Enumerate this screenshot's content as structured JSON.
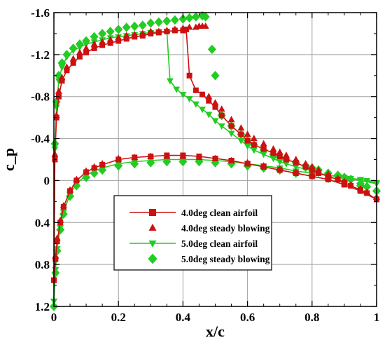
{
  "chart_data": {
    "type": "scatter",
    "xlabel": "x/c",
    "ylabel": "c_p",
    "xlim": [
      0,
      1
    ],
    "ylim": [
      -1.6,
      1.2
    ],
    "y_inverted": true,
    "grid": true,
    "legend_position": "lower-center",
    "x_ticks": [
      {
        "value": 0,
        "label": "0"
      },
      {
        "value": 0.2,
        "label": "0.2"
      },
      {
        "value": 0.4,
        "label": "0.4"
      },
      {
        "value": 0.6,
        "label": "0.6"
      },
      {
        "value": 0.8,
        "label": "0.8"
      },
      {
        "value": 1,
        "label": "1"
      }
    ],
    "y_ticks": [
      {
        "value": -1.6,
        "label": "-1.6"
      },
      {
        "value": -1.2,
        "label": "-1.2"
      },
      {
        "value": -0.8,
        "label": "-0.8"
      },
      {
        "value": -0.4,
        "label": "-0.4"
      },
      {
        "value": 0,
        "label": "0"
      },
      {
        "value": 0.4,
        "label": "0.4"
      },
      {
        "value": 0.8,
        "label": "0.8"
      },
      {
        "value": 1.2,
        "label": "1.2"
      }
    ],
    "series": [
      {
        "name": "4.0deg clean airfoil",
        "color": "#cc1111",
        "marker": "square",
        "line": true,
        "upper": {
          "x": [
            0.0,
            0.003,
            0.008,
            0.015,
            0.025,
            0.04,
            0.06,
            0.08,
            0.1,
            0.125,
            0.15,
            0.175,
            0.2,
            0.225,
            0.25,
            0.275,
            0.3,
            0.325,
            0.35,
            0.375,
            0.4,
            0.41,
            0.42,
            0.44,
            0.46,
            0.48,
            0.5,
            0.52,
            0.55,
            0.58,
            0.6,
            0.62,
            0.65,
            0.68,
            0.7,
            0.72,
            0.75,
            0.78,
            0.8,
            0.82,
            0.85,
            0.88,
            0.9,
            0.92,
            0.95,
            0.97,
            1.0
          ],
          "y": [
            0.95,
            -0.2,
            -0.6,
            -0.8,
            -0.95,
            -1.05,
            -1.12,
            -1.18,
            -1.22,
            -1.26,
            -1.29,
            -1.31,
            -1.33,
            -1.35,
            -1.37,
            -1.38,
            -1.4,
            -1.41,
            -1.42,
            -1.43,
            -1.43,
            -1.44,
            -1.0,
            -0.86,
            -0.82,
            -0.76,
            -0.7,
            -0.62,
            -0.52,
            -0.44,
            -0.38,
            -0.34,
            -0.3,
            -0.26,
            -0.23,
            -0.2,
            -0.17,
            -0.13,
            -0.1,
            -0.07,
            -0.04,
            -0.01,
            0.02,
            0.05,
            0.09,
            0.12,
            0.18
          ]
        },
        "lower": {
          "x": [
            0.0,
            0.005,
            0.01,
            0.02,
            0.03,
            0.05,
            0.07,
            0.1,
            0.125,
            0.15,
            0.2,
            0.25,
            0.3,
            0.35,
            0.4,
            0.45,
            0.5,
            0.55,
            0.6,
            0.65,
            0.7,
            0.75,
            0.8,
            0.85,
            0.9,
            0.95,
            1.0
          ],
          "y": [
            0.95,
            0.75,
            0.58,
            0.4,
            0.25,
            0.1,
            0.0,
            -0.08,
            -0.12,
            -0.15,
            -0.2,
            -0.22,
            -0.23,
            -0.24,
            -0.24,
            -0.23,
            -0.21,
            -0.19,
            -0.16,
            -0.13,
            -0.1,
            -0.07,
            -0.04,
            -0.01,
            0.04,
            0.1,
            0.18
          ]
        }
      },
      {
        "name": "4.0deg steady blowing",
        "color": "#cc1111",
        "marker": "triangle-up",
        "line": false,
        "upper": {
          "x": [
            0.003,
            0.008,
            0.015,
            0.025,
            0.04,
            0.06,
            0.08,
            0.1,
            0.125,
            0.15,
            0.175,
            0.2,
            0.225,
            0.25,
            0.275,
            0.3,
            0.325,
            0.35,
            0.375,
            0.4,
            0.42,
            0.44,
            0.45,
            0.46,
            0.47,
            0.48,
            0.5,
            0.52,
            0.55,
            0.58,
            0.6,
            0.62,
            0.65,
            0.68,
            0.7,
            0.72,
            0.75,
            0.78,
            0.8,
            0.82,
            0.85,
            0.88,
            0.9,
            0.92,
            0.95,
            0.97,
            1.0
          ],
          "y": [
            -0.25,
            -0.62,
            -0.85,
            -0.98,
            -1.08,
            -1.16,
            -1.22,
            -1.26,
            -1.3,
            -1.32,
            -1.34,
            -1.36,
            -1.38,
            -1.39,
            -1.4,
            -1.42,
            -1.42,
            -1.43,
            -1.44,
            -1.45,
            -1.46,
            -1.46,
            -1.47,
            -1.47,
            -1.47,
            -0.8,
            -0.74,
            -0.68,
            -0.58,
            -0.5,
            -0.44,
            -0.4,
            -0.35,
            -0.3,
            -0.27,
            -0.24,
            -0.2,
            -0.16,
            -0.13,
            -0.1,
            -0.06,
            -0.02,
            0.01,
            0.04,
            0.08,
            0.11,
            0.16
          ]
        },
        "lower": {
          "x": [
            0.005,
            0.01,
            0.02,
            0.03,
            0.05,
            0.07,
            0.1,
            0.125,
            0.15,
            0.2,
            0.25,
            0.3,
            0.35,
            0.4,
            0.45,
            0.5,
            0.55,
            0.6,
            0.65,
            0.7,
            0.75,
            0.8,
            0.85,
            0.9,
            0.95,
            1.0
          ],
          "y": [
            0.72,
            0.55,
            0.38,
            0.24,
            0.09,
            -0.01,
            -0.09,
            -0.13,
            -0.16,
            -0.21,
            -0.22,
            -0.23,
            -0.23,
            -0.23,
            -0.22,
            -0.21,
            -0.19,
            -0.17,
            -0.14,
            -0.11,
            -0.08,
            -0.05,
            -0.02,
            0.03,
            0.09,
            0.16
          ]
        }
      },
      {
        "name": "5.0deg clean airfoil",
        "color": "#22cc22",
        "marker": "triangle-down",
        "line": true,
        "upper": {
          "x": [
            0.0,
            0.003,
            0.008,
            0.015,
            0.025,
            0.04,
            0.06,
            0.08,
            0.1,
            0.125,
            0.15,
            0.175,
            0.2,
            0.225,
            0.25,
            0.275,
            0.3,
            0.325,
            0.35,
            0.36,
            0.38,
            0.4,
            0.42,
            0.44,
            0.46,
            0.48,
            0.5,
            0.52,
            0.55,
            0.58,
            0.6,
            0.62,
            0.65,
            0.68,
            0.7,
            0.72,
            0.75,
            0.78,
            0.8,
            0.82,
            0.85,
            0.88,
            0.9,
            0.92,
            0.95,
            0.97,
            1.0
          ],
          "y": [
            1.15,
            -0.3,
            -0.7,
            -0.95,
            -1.08,
            -1.18,
            -1.24,
            -1.27,
            -1.3,
            -1.32,
            -1.34,
            -1.36,
            -1.37,
            -1.38,
            -1.39,
            -1.4,
            -1.41,
            -1.42,
            -1.42,
            -0.95,
            -0.87,
            -0.82,
            -0.78,
            -0.73,
            -0.68,
            -0.63,
            -0.57,
            -0.52,
            -0.45,
            -0.38,
            -0.33,
            -0.29,
            -0.25,
            -0.21,
            -0.18,
            -0.16,
            -0.13,
            -0.11,
            -0.09,
            -0.07,
            -0.05,
            -0.04,
            -0.03,
            -0.02,
            -0.01,
            0.0,
            0.02
          ]
        },
        "lower": {
          "x": [
            0.0,
            0.005,
            0.01,
            0.02,
            0.03,
            0.05,
            0.07,
            0.1,
            0.125,
            0.15,
            0.2,
            0.25,
            0.3,
            0.35,
            0.4,
            0.45,
            0.5,
            0.55,
            0.6,
            0.65,
            0.7,
            0.75,
            0.8,
            0.85,
            0.9,
            0.95,
            1.0
          ],
          "y": [
            1.15,
            0.85,
            0.65,
            0.45,
            0.3,
            0.13,
            0.03,
            -0.05,
            -0.09,
            -0.12,
            -0.16,
            -0.18,
            -0.19,
            -0.2,
            -0.2,
            -0.2,
            -0.19,
            -0.18,
            -0.16,
            -0.14,
            -0.12,
            -0.09,
            -0.07,
            -0.05,
            -0.03,
            0.0,
            0.03
          ]
        }
      },
      {
        "name": "5.0deg steady blowing",
        "color": "#22cc22",
        "marker": "diamond",
        "line": false,
        "upper": {
          "x": [
            0.003,
            0.008,
            0.015,
            0.025,
            0.04,
            0.06,
            0.08,
            0.1,
            0.125,
            0.15,
            0.175,
            0.2,
            0.225,
            0.25,
            0.275,
            0.3,
            0.325,
            0.35,
            0.375,
            0.4,
            0.42,
            0.44,
            0.46,
            0.47,
            0.49,
            0.5,
            0.52,
            0.55,
            0.58,
            0.6,
            0.62,
            0.65,
            0.68,
            0.7,
            0.72,
            0.75,
            0.78,
            0.8,
            0.82,
            0.85,
            0.88,
            0.9,
            0.92,
            0.95,
            0.97,
            1.0
          ],
          "y": [
            -0.35,
            -0.75,
            -1.0,
            -1.12,
            -1.2,
            -1.26,
            -1.3,
            -1.33,
            -1.37,
            -1.4,
            -1.42,
            -1.44,
            -1.46,
            -1.47,
            -1.48,
            -1.5,
            -1.51,
            -1.52,
            -1.53,
            -1.54,
            -1.55,
            -1.56,
            -1.57,
            -1.56,
            -1.25,
            -1.0,
            -0.62,
            -0.52,
            -0.44,
            -0.38,
            -0.34,
            -0.29,
            -0.25,
            -0.22,
            -0.2,
            -0.17,
            -0.14,
            -0.12,
            -0.1,
            -0.07,
            -0.05,
            -0.03,
            -0.01,
            0.03,
            0.06,
            0.1
          ]
        },
        "lower": {
          "x": [
            0.0,
            0.005,
            0.01,
            0.02,
            0.03,
            0.05,
            0.07,
            0.1,
            0.125,
            0.15,
            0.2,
            0.25,
            0.3,
            0.35,
            0.4,
            0.45,
            0.5,
            0.55,
            0.6,
            0.65,
            0.7,
            0.75,
            0.8,
            0.85,
            0.9,
            0.95,
            1.0
          ],
          "y": [
            1.2,
            0.88,
            0.67,
            0.47,
            0.32,
            0.15,
            0.05,
            -0.03,
            -0.07,
            -0.1,
            -0.14,
            -0.16,
            -0.17,
            -0.18,
            -0.18,
            -0.18,
            -0.17,
            -0.16,
            -0.14,
            -0.12,
            -0.1,
            -0.07,
            -0.05,
            -0.02,
            0.01,
            0.05,
            0.1
          ]
        }
      }
    ]
  }
}
